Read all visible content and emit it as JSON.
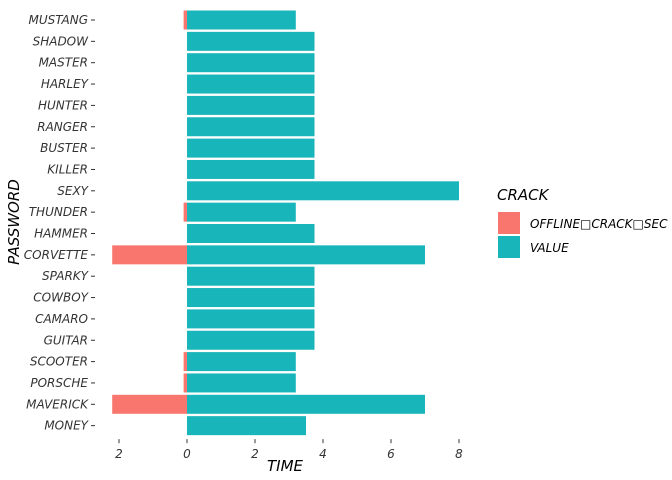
{
  "chart_data": {
    "type": "bar",
    "orientation": "horizontal",
    "stacked": true,
    "xlabel": "TIME",
    "ylabel": "PASSWORD",
    "xlim": [
      -2.2,
      8.2
    ],
    "xticks": [
      -2,
      0,
      2,
      4,
      6,
      8
    ],
    "xtick_labels": [
      "2",
      "0",
      "2",
      "4",
      "6",
      "8"
    ],
    "grid": false,
    "legend_position": "right",
    "legend_title": "CRACK",
    "categories": [
      "MUSTANG",
      "SHADOW",
      "MASTER",
      "HARLEY",
      "HUNTER",
      "RANGER",
      "BUSTER",
      "KILLER",
      "SEXY",
      "THUNDER",
      "HAMMER",
      "CORVETTE",
      "SPARKY",
      "COWBOY",
      "CAMARO",
      "GUITAR",
      "SCOOTER",
      "PORSCHE",
      "MAVERICK",
      "MONEY"
    ],
    "series": [
      {
        "name": "OFFLINE□CRACK□SEC",
        "color": "#F8766D",
        "values": [
          -0.1,
          0,
          0,
          0,
          0,
          0,
          0,
          0,
          0,
          -0.1,
          0,
          -2.2,
          0,
          0,
          0,
          0,
          -0.1,
          -0.1,
          -2.2,
          0
        ]
      },
      {
        "name": "VALUE",
        "color": "#18B5BA",
        "values": [
          3.2,
          3.75,
          3.75,
          3.75,
          3.75,
          3.75,
          3.75,
          3.75,
          8,
          3.2,
          3.75,
          7,
          3.75,
          3.75,
          3.75,
          3.75,
          3.2,
          3.2,
          7,
          3.5
        ]
      }
    ]
  }
}
